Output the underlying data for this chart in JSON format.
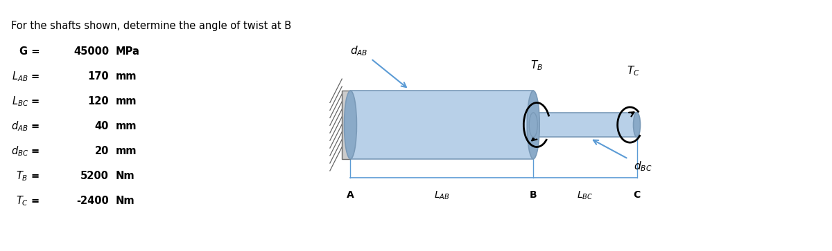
{
  "title": "For the shafts shown, determine the angle of twist at B",
  "params": [
    {
      "label": "G =",
      "value": "45000",
      "unit": "MPa"
    },
    {
      "label": "L_{AB} =",
      "value": "170",
      "unit": "mm"
    },
    {
      "label": "L_{BC} =",
      "value": "120",
      "unit": "mm"
    },
    {
      "label": "d_{AB} =",
      "value": "40",
      "unit": "mm"
    },
    {
      "label": "d_{BC} =",
      "value": "20",
      "unit": "mm"
    },
    {
      "label": "T_B =",
      "value": "5200",
      "unit": "Nm"
    },
    {
      "label": "T_C =",
      "value": "-2400",
      "unit": "Nm"
    }
  ],
  "shaft_color": "#b8d0e8",
  "shaft_edge_color": "#7a9ab8",
  "arrow_color_blue": "#5b9bd5",
  "text_color": "#000000",
  "bg_color": "#ffffff",
  "wall_color": "#aaaaaa",
  "hatch_color": "#666666"
}
